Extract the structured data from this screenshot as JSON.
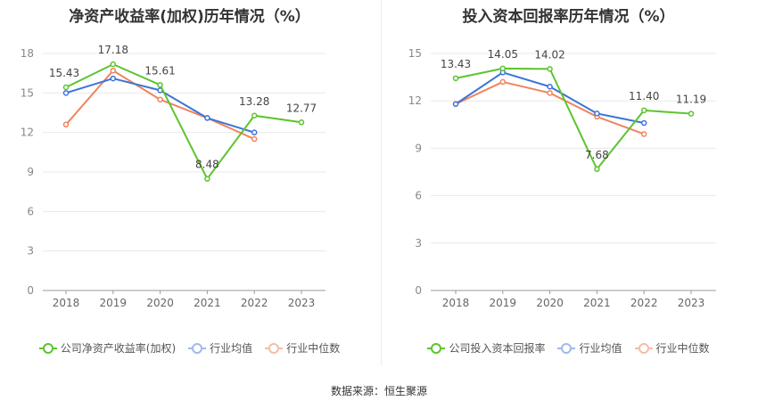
{
  "source_text": "数据来源：恒生聚源",
  "colors": {
    "company": "#5cc42e",
    "avg": "#3c74d8",
    "median": "#f0845c",
    "grid": "#e8e8e8",
    "axis": "#999999"
  },
  "chart_data": [
    {
      "type": "line",
      "title": "净资产收益率(加权)历年情况（%）",
      "categories": [
        "2018",
        "2019",
        "2020",
        "2021",
        "2022",
        "2023"
      ],
      "ylim": [
        0,
        18
      ],
      "yticks": [
        "0",
        "3",
        "6",
        "9",
        "12",
        "15",
        "18"
      ],
      "grid": true,
      "legend_position": "bottom",
      "series": [
        {
          "name": "公司净资产收益率(加权)",
          "key": "company",
          "values": [
            15.43,
            17.18,
            15.61,
            8.48,
            13.28,
            12.77
          ],
          "labels": [
            "15.43",
            "17.18",
            "15.61",
            "8.48",
            "13.28",
            "12.77"
          ]
        },
        {
          "name": "行业均值",
          "key": "avg",
          "values": [
            15.0,
            16.1,
            15.2,
            13.1,
            12.0,
            null
          ]
        },
        {
          "name": "行业中位数",
          "key": "median",
          "values": [
            12.6,
            16.7,
            14.5,
            13.1,
            11.5,
            null
          ]
        }
      ]
    },
    {
      "type": "line",
      "title": "投入资本回报率历年情况（%）",
      "categories": [
        "2018",
        "2019",
        "2020",
        "2021",
        "2022",
        "2023"
      ],
      "ylim": [
        0,
        15
      ],
      "yticks": [
        "0",
        "3",
        "6",
        "9",
        "12",
        "15"
      ],
      "grid": true,
      "legend_position": "bottom",
      "series": [
        {
          "name": "公司投入资本回报率",
          "key": "company",
          "values": [
            13.43,
            14.05,
            14.02,
            7.68,
            11.4,
            11.19
          ],
          "labels": [
            "13.43",
            "14.05",
            "14.02",
            "7.68",
            "11.40",
            "11.19"
          ]
        },
        {
          "name": "行业均值",
          "key": "avg",
          "values": [
            11.8,
            13.8,
            12.9,
            11.2,
            10.6,
            null
          ]
        },
        {
          "name": "行业中位数",
          "key": "median",
          "values": [
            11.8,
            13.2,
            12.5,
            11.0,
            9.9,
            null
          ]
        }
      ]
    }
  ]
}
